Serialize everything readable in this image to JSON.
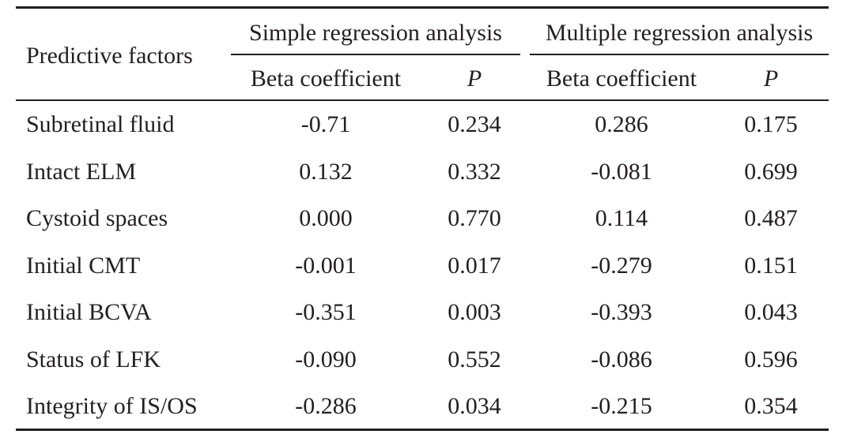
{
  "header": {
    "row_label": "Predictive factors",
    "group_simple": "Simple regression analysis",
    "group_multiple": "Multiple regression analysis",
    "beta_simple": "Beta coefficient",
    "p_simple": "P",
    "beta_multiple": "Beta coefficient",
    "p_multiple": "P"
  },
  "rows": [
    {
      "factor": "Subretinal fluid",
      "simple_beta": "-0.71",
      "simple_p": "0.234",
      "multiple_beta": "0.286",
      "multiple_p": "0.175"
    },
    {
      "factor": "Intact ELM",
      "simple_beta": "0.132",
      "simple_p": "0.332",
      "multiple_beta": "-0.081",
      "multiple_p": "0.699"
    },
    {
      "factor": "Cystoid spaces",
      "simple_beta": "0.000",
      "simple_p": "0.770",
      "multiple_beta": "0.114",
      "multiple_p": "0.487"
    },
    {
      "factor": "Initial CMT",
      "simple_beta": "-0.001",
      "simple_p": "0.017",
      "multiple_beta": "-0.279",
      "multiple_p": "0.151"
    },
    {
      "factor": "Initial BCVA",
      "simple_beta": "-0.351",
      "simple_p": "0.003",
      "multiple_beta": "-0.393",
      "multiple_p": "0.043"
    },
    {
      "factor": "Status of LFK",
      "simple_beta": "-0.090",
      "simple_p": "0.552",
      "multiple_beta": "-0.086",
      "multiple_p": "0.596"
    },
    {
      "factor": "Integrity of IS/OS",
      "simple_beta": "-0.286",
      "simple_p": "0.034",
      "multiple_beta": "-0.215",
      "multiple_p": "0.354"
    }
  ]
}
